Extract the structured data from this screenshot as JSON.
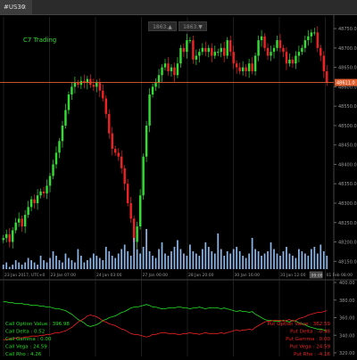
{
  "window": {
    "tab_title": "#US30",
    "tab_close": "×"
  },
  "toolbar": {
    "left_button": "1863.▲",
    "right_button": "1863.▼"
  },
  "chart_title": "C7 Trading",
  "price_marker": {
    "label": "48611.0",
    "color": "#e06030"
  },
  "time_marker": {
    "label": "09:00"
  },
  "colors": {
    "up": "#33dd33",
    "down": "#ee2222",
    "volume": "#8ab4e6",
    "grid": "#333333",
    "call": "#22dd22",
    "put": "#ee2222"
  },
  "chart_data": [
    {
      "type": "candlestick",
      "title": "C7 Trading",
      "x_ticks": [
        "23 Jan 2017, UTC+0",
        "23 Jan 07:00",
        "24 Jan 03:00",
        "27 Jan 00:00",
        "28 Jan 20:00",
        "30 Jan 16:00",
        "31 Jan 12:00",
        "01 Feb 08:00"
      ],
      "y_ticks": [
        48750,
        48700,
        48650,
        48600,
        48550,
        48500,
        48450,
        48400,
        48350,
        48300,
        48250,
        48200,
        48150
      ],
      "ylim": [
        48130,
        48780
      ],
      "reference_line": 48611,
      "close": [
        48210,
        48220,
        48200,
        48230,
        48250,
        48260,
        48240,
        48270,
        48290,
        48310,
        48300,
        48320,
        48330,
        48325,
        48345,
        48370,
        48400,
        48430,
        48460,
        48500,
        48540,
        48580,
        48600,
        48610,
        48605,
        48615,
        48610,
        48620,
        48605,
        48600,
        48610,
        48590,
        48570,
        48530,
        48480,
        48440,
        48430,
        48420,
        48390,
        48350,
        48300,
        48260,
        48200,
        48240,
        48320,
        48420,
        48500,
        48580,
        48600,
        48610,
        48630,
        48650,
        48660,
        48640,
        48650,
        48630,
        48660,
        48700,
        48690,
        48720,
        48720,
        48670,
        48680,
        48690,
        48700,
        48690,
        48700,
        48680,
        48690,
        48690,
        48700,
        48680,
        48720,
        48690,
        48660,
        48650,
        48640,
        48650,
        48640,
        48660,
        48640,
        48680,
        48720,
        48730,
        48700,
        48680,
        48690,
        48700,
        48720,
        48700,
        48690,
        48660,
        48670,
        48660,
        48680,
        48690,
        48700,
        48720,
        48730,
        48740,
        48740,
        48700,
        48680,
        48640,
        48610
      ]
    },
    {
      "type": "bar",
      "name": "volume",
      "values": [
        2,
        3,
        1,
        2,
        4,
        3,
        2,
        3,
        5,
        4,
        3,
        2,
        6,
        4,
        3,
        5,
        8,
        6,
        4,
        3,
        7,
        5,
        4,
        3,
        9,
        6,
        3,
        4,
        5,
        7,
        6,
        5,
        4,
        10,
        8,
        6,
        5,
        7,
        9,
        11,
        8,
        6,
        14,
        9,
        7,
        10,
        18,
        8,
        6,
        5,
        9,
        12,
        7,
        6,
        8,
        10,
        13,
        9,
        7,
        6,
        11,
        8,
        7,
        6,
        9,
        12,
        10,
        8,
        7,
        16,
        9,
        6,
        8,
        7,
        9,
        10,
        8,
        6,
        5,
        7,
        14,
        9,
        8,
        6,
        7,
        8,
        12,
        9,
        7,
        6,
        8,
        10,
        7,
        6,
        5,
        9,
        8,
        7,
        6,
        9,
        10,
        7,
        11,
        8,
        6
      ],
      "ylim": [
        0,
        18
      ]
    },
    {
      "type": "line",
      "series": [
        {
          "name": "call",
          "values": [
            378,
            378,
            377,
            377,
            376,
            376,
            376,
            375,
            375,
            374,
            374,
            374,
            373,
            373,
            372,
            372,
            371,
            370,
            370,
            369,
            368,
            366,
            364,
            361,
            358,
            356,
            354,
            351,
            350,
            351,
            352,
            354,
            357,
            358,
            360,
            361,
            362,
            364,
            366,
            367,
            369,
            371,
            372,
            372,
            373,
            374,
            375,
            374,
            372,
            372,
            371,
            370,
            370,
            371,
            371,
            371,
            372,
            372,
            371,
            371,
            370,
            371,
            371,
            372,
            371,
            370,
            371,
            371,
            371,
            371,
            370,
            371,
            370,
            369,
            368,
            367,
            368,
            367,
            367,
            366,
            367,
            364,
            362,
            360,
            358,
            357,
            357,
            356,
            356,
            356,
            357,
            356,
            355,
            357,
            356,
            354,
            353,
            352,
            350,
            349,
            348,
            347,
            347,
            346,
            345
          ]
        },
        {
          "name": "put",
          "values": [
            335,
            335,
            336,
            336,
            337,
            337,
            337,
            338,
            338,
            339,
            339,
            339,
            340,
            340,
            341,
            341,
            342,
            343,
            343,
            344,
            345,
            347,
            349,
            352,
            355,
            357,
            359,
            362,
            363,
            362,
            361,
            359,
            356,
            355,
            353,
            352,
            351,
            349,
            347,
            346,
            344,
            342,
            341,
            341,
            340,
            339,
            338,
            339,
            341,
            341,
            342,
            343,
            343,
            342,
            342,
            342,
            341,
            341,
            342,
            342,
            343,
            342,
            342,
            341,
            342,
            343,
            342,
            342,
            342,
            342,
            343,
            342,
            343,
            344,
            345,
            346,
            345,
            346,
            346,
            347,
            346,
            349,
            351,
            353,
            355,
            356,
            356,
            357,
            357,
            357,
            356,
            357,
            358,
            356,
            357,
            359,
            360,
            361,
            363,
            364,
            365,
            366,
            366,
            367,
            368
          ]
        }
      ],
      "y_ticks": [
        400,
        380,
        360,
        340,
        320
      ],
      "ylim": [
        320,
        400
      ]
    }
  ],
  "call_panel": [
    {
      "label": "Call Option Value : ",
      "value": "396.98"
    },
    {
      "label": "Call Delta : ",
      "value": "0.52"
    },
    {
      "label": "Call Gamma : ",
      "value": "0.00"
    },
    {
      "label": "Call Vega : ",
      "value": "24.59"
    },
    {
      "label": "Call Rho : ",
      "value": "4.26"
    }
  ],
  "put_panel": [
    {
      "label": "Put Option Value : ",
      "value": "362.59"
    },
    {
      "label": "Put Delta : ",
      "value": "-0.48"
    },
    {
      "label": "Put Gamma : ",
      "value": "0.00"
    },
    {
      "label": "Put Vega : ",
      "value": "24.59"
    },
    {
      "label": "Put Rho : ",
      "value": "-4.16"
    }
  ]
}
